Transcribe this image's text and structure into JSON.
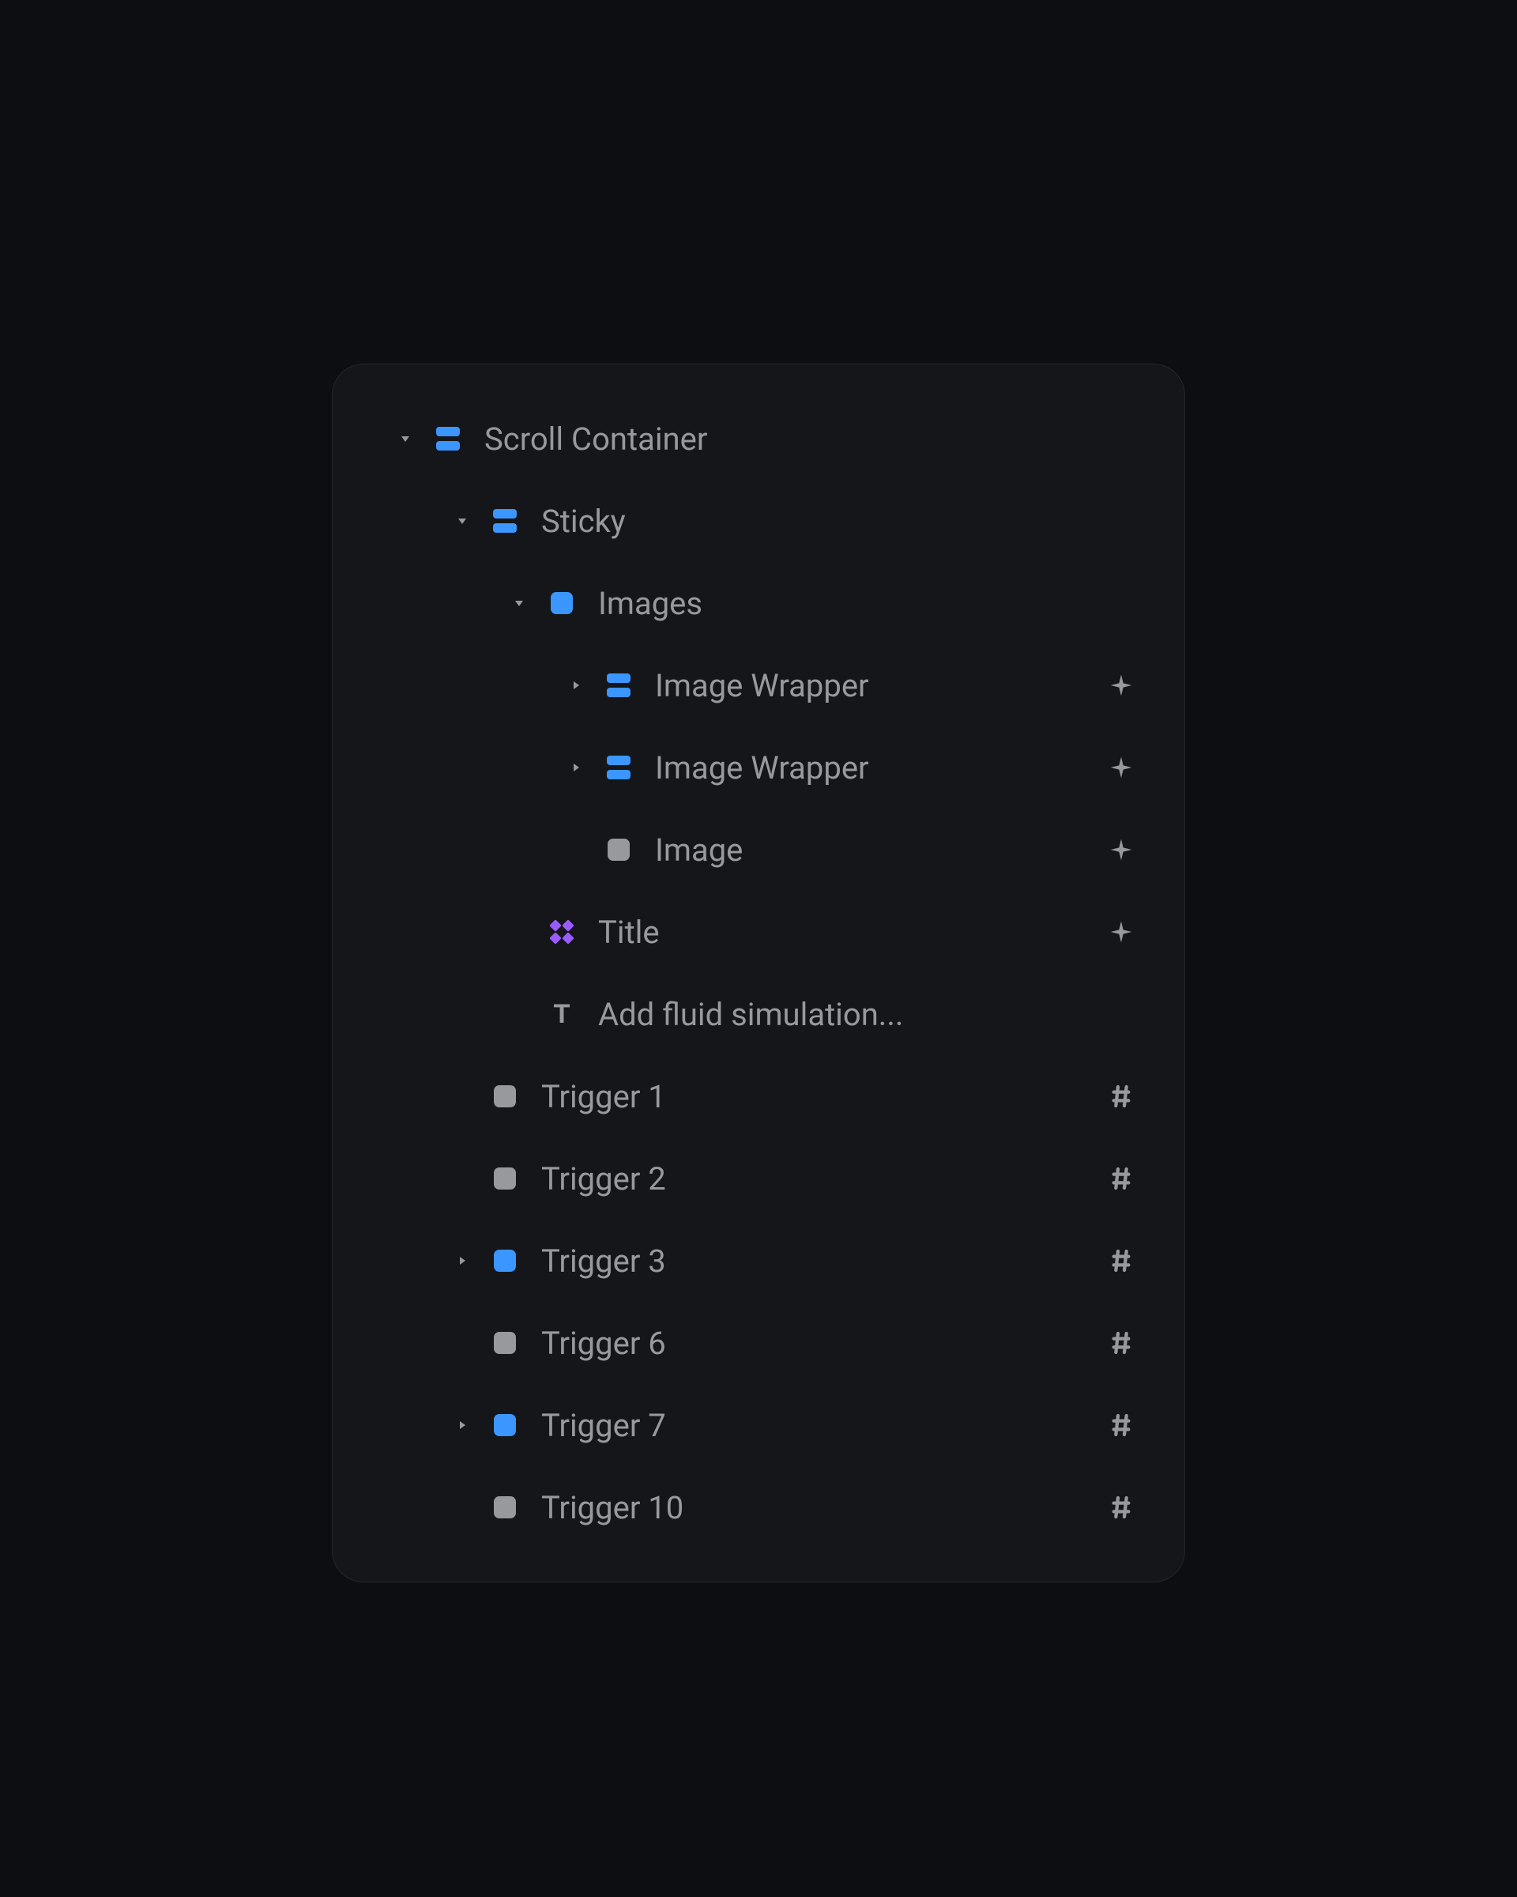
{
  "colors": {
    "page_bg": "#0d0e11",
    "panel_bg": "#14161a",
    "panel_border": "#24262b",
    "text": "#98999c",
    "icon_blue": "#3b96ff",
    "icon_gray": "#98999c",
    "icon_purple": "#9b5cff"
  },
  "tree": [
    {
      "indent": 0,
      "disclosure": "down",
      "icon": "stack",
      "icon_color": "#3b96ff",
      "label": "Scroll Container",
      "trailing": null
    },
    {
      "indent": 1,
      "disclosure": "down",
      "icon": "stack",
      "icon_color": "#3b96ff",
      "label": "Sticky",
      "trailing": null
    },
    {
      "indent": 2,
      "disclosure": "down",
      "icon": "frame",
      "icon_color": "#3b96ff",
      "label": "Images",
      "trailing": null
    },
    {
      "indent": 3,
      "disclosure": "right",
      "icon": "stack",
      "icon_color": "#3b96ff",
      "label": "Image Wrapper",
      "trailing": "sparkle"
    },
    {
      "indent": 3,
      "disclosure": "right",
      "icon": "stack",
      "icon_color": "#3b96ff",
      "label": "Image Wrapper",
      "trailing": "sparkle"
    },
    {
      "indent": 3,
      "disclosure": null,
      "icon": "frame",
      "icon_color": "#98999c",
      "label": "Image",
      "trailing": "sparkle"
    },
    {
      "indent": 2,
      "disclosure": null,
      "icon": "component",
      "icon_color": "#9b5cff",
      "label": "Title",
      "trailing": "sparkle"
    },
    {
      "indent": 2,
      "disclosure": null,
      "icon": "text",
      "icon_color": "#98999c",
      "label": "Add fluid simulation...",
      "trailing": null
    },
    {
      "indent": 1,
      "disclosure": null,
      "icon": "frame",
      "icon_color": "#98999c",
      "label": "Trigger 1",
      "trailing": "hash"
    },
    {
      "indent": 1,
      "disclosure": null,
      "icon": "frame",
      "icon_color": "#98999c",
      "label": "Trigger 2",
      "trailing": "hash"
    },
    {
      "indent": 1,
      "disclosure": "right",
      "icon": "frame",
      "icon_color": "#3b96ff",
      "label": "Trigger 3",
      "trailing": "hash"
    },
    {
      "indent": 1,
      "disclosure": null,
      "icon": "frame",
      "icon_color": "#98999c",
      "label": "Trigger 6",
      "trailing": "hash"
    },
    {
      "indent": 1,
      "disclosure": "right",
      "icon": "frame",
      "icon_color": "#3b96ff",
      "label": "Trigger 7",
      "trailing": "hash"
    },
    {
      "indent": 1,
      "disclosure": null,
      "icon": "frame",
      "icon_color": "#98999c",
      "label": "Trigger 10",
      "trailing": "hash"
    }
  ]
}
